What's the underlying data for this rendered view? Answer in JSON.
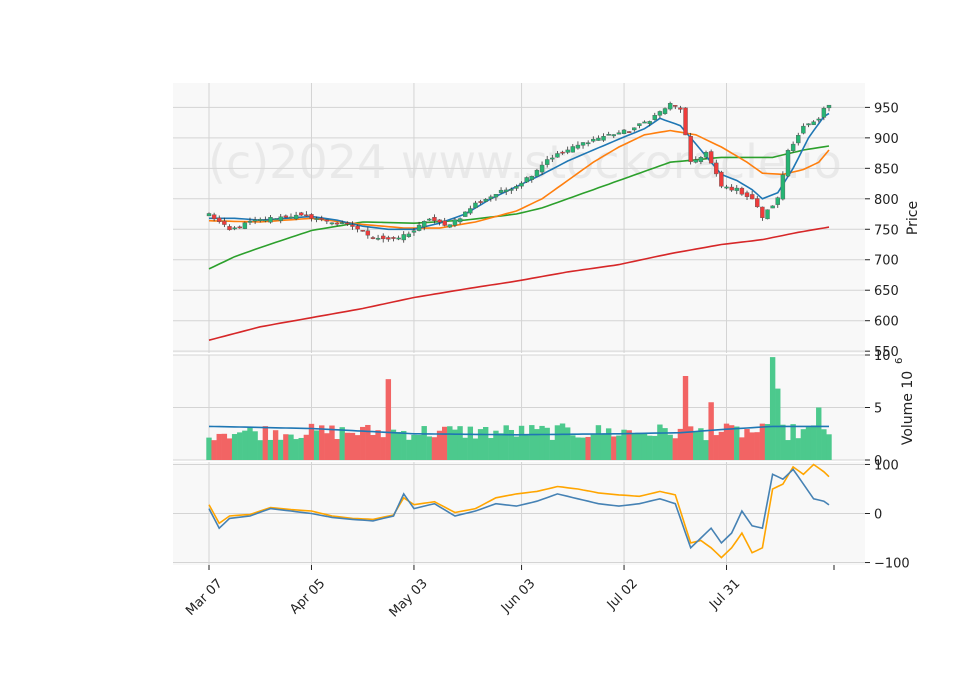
{
  "chart_data": {
    "type": "candlestick",
    "watermark": "(c)2024 www.stockoracle.io",
    "x_tick_labels": [
      "Mar 07",
      "Apr 05",
      "May 03",
      "Jun 03",
      "Jul 02",
      "Jul 31"
    ],
    "x_tick_index": [
      0,
      20,
      40,
      61,
      81,
      101
    ],
    "n_bars": 122,
    "colors": {
      "up": "#26b573",
      "down": "#ef3b3b",
      "up_vol": "#4cc98d",
      "down_vol": "#f26464",
      "ma_short": "#1f77b4",
      "ma_mid": "#ff7f0e",
      "ma_long": "#2ca02c",
      "ma_year": "#d62728",
      "osc_1": "#4682b4",
      "osc_2": "#ffa500"
    },
    "price_panel": {
      "ylabel": "Price",
      "ylim": [
        547,
        990
      ],
      "yticks": [
        550,
        600,
        650,
        700,
        750,
        800,
        850,
        900,
        950
      ],
      "close_anchors": [
        [
          0,
          775
        ],
        [
          4,
          748
        ],
        [
          8,
          762
        ],
        [
          12,
          768
        ],
        [
          16,
          772
        ],
        [
          20,
          770
        ],
        [
          24,
          762
        ],
        [
          28,
          755
        ],
        [
          32,
          738
        ],
        [
          36,
          732
        ],
        [
          40,
          748
        ],
        [
          43,
          768
        ],
        [
          46,
          755
        ],
        [
          49,
          770
        ],
        [
          52,
          792
        ],
        [
          56,
          808
        ],
        [
          60,
          822
        ],
        [
          63,
          840
        ],
        [
          66,
          865
        ],
        [
          70,
          880
        ],
        [
          74,
          895
        ],
        [
          78,
          905
        ],
        [
          82,
          912
        ],
        [
          86,
          930
        ],
        [
          90,
          955
        ],
        [
          92,
          948
        ],
        [
          94,
          858
        ],
        [
          97,
          876
        ],
        [
          100,
          820
        ],
        [
          103,
          815
        ],
        [
          106,
          800
        ],
        [
          108,
          770
        ],
        [
          111,
          800
        ],
        [
          113,
          880
        ],
        [
          116,
          918
        ],
        [
          119,
          928
        ],
        [
          120,
          948
        ],
        [
          122,
          955
        ]
      ],
      "ma_short": [
        [
          0,
          768
        ],
        [
          5,
          768
        ],
        [
          10,
          765
        ],
        [
          15,
          768
        ],
        [
          20,
          771
        ],
        [
          25,
          765
        ],
        [
          30,
          755
        ],
        [
          35,
          750
        ],
        [
          40,
          750
        ],
        [
          45,
          760
        ],
        [
          50,
          775
        ],
        [
          55,
          800
        ],
        [
          60,
          820
        ],
        [
          65,
          840
        ],
        [
          70,
          862
        ],
        [
          75,
          880
        ],
        [
          80,
          898
        ],
        [
          85,
          915
        ],
        [
          88,
          932
        ],
        [
          92,
          920
        ],
        [
          96,
          880
        ],
        [
          100,
          840
        ],
        [
          103,
          830
        ],
        [
          106,
          815
        ],
        [
          108,
          800
        ],
        [
          111,
          810
        ],
        [
          114,
          850
        ],
        [
          117,
          900
        ],
        [
          120,
          935
        ],
        [
          122,
          945
        ]
      ],
      "ma_mid": [
        [
          0,
          764
        ],
        [
          10,
          762
        ],
        [
          20,
          768
        ],
        [
          30,
          758
        ],
        [
          38,
          752
        ],
        [
          45,
          752
        ],
        [
          52,
          762
        ],
        [
          60,
          780
        ],
        [
          65,
          800
        ],
        [
          70,
          830
        ],
        [
          75,
          860
        ],
        [
          80,
          885
        ],
        [
          85,
          905
        ],
        [
          90,
          912
        ],
        [
          95,
          905
        ],
        [
          100,
          885
        ],
        [
          105,
          860
        ],
        [
          108,
          842
        ],
        [
          112,
          840
        ],
        [
          116,
          848
        ],
        [
          119,
          860
        ],
        [
          122,
          890
        ]
      ],
      "ma_long": [
        [
          0,
          685
        ],
        [
          5,
          705
        ],
        [
          10,
          720
        ],
        [
          20,
          748
        ],
        [
          30,
          762
        ],
        [
          40,
          760
        ],
        [
          50,
          765
        ],
        [
          60,
          775
        ],
        [
          65,
          785
        ],
        [
          70,
          800
        ],
        [
          80,
          830
        ],
        [
          90,
          860
        ],
        [
          100,
          868
        ],
        [
          110,
          868
        ],
        [
          116,
          880
        ],
        [
          122,
          888
        ]
      ],
      "ma_year": [
        [
          0,
          568
        ],
        [
          10,
          590
        ],
        [
          20,
          605
        ],
        [
          30,
          620
        ],
        [
          40,
          638
        ],
        [
          50,
          652
        ],
        [
          60,
          665
        ],
        [
          70,
          680
        ],
        [
          80,
          692
        ],
        [
          90,
          710
        ],
        [
          100,
          725
        ],
        [
          108,
          733
        ],
        [
          115,
          745
        ],
        [
          122,
          755
        ]
      ]
    },
    "volume_panel": {
      "ylabel": "Volume  10",
      "ylabel_exponent": "6",
      "ylim": [
        0,
        10
      ],
      "yticks": [
        0,
        5,
        10
      ],
      "tall_bars": [
        [
          35,
          7.7
        ],
        [
          93,
          8.0
        ],
        [
          98,
          5.5
        ],
        [
          110,
          9.8
        ],
        [
          111,
          6.8
        ],
        [
          119,
          5.0
        ]
      ],
      "base_mean": 2.6,
      "ma": [
        [
          0,
          3.2
        ],
        [
          20,
          3.0
        ],
        [
          40,
          2.5
        ],
        [
          60,
          2.4
        ],
        [
          80,
          2.5
        ],
        [
          92,
          2.6
        ],
        [
          100,
          2.9
        ],
        [
          110,
          3.2
        ],
        [
          122,
          3.2
        ]
      ]
    },
    "oscillator_panel": {
      "ylim": [
        -105,
        105
      ],
      "yticks": [
        -100,
        0,
        100
      ],
      "line1": [
        [
          0,
          10
        ],
        [
          2,
          -30
        ],
        [
          4,
          -10
        ],
        [
          8,
          -5
        ],
        [
          12,
          10
        ],
        [
          16,
          5
        ],
        [
          20,
          0
        ],
        [
          24,
          -8
        ],
        [
          28,
          -12
        ],
        [
          32,
          -15
        ],
        [
          36,
          -5
        ],
        [
          38,
          40
        ],
        [
          40,
          10
        ],
        [
          44,
          20
        ],
        [
          48,
          -5
        ],
        [
          52,
          5
        ],
        [
          56,
          20
        ],
        [
          60,
          15
        ],
        [
          64,
          25
        ],
        [
          68,
          40
        ],
        [
          72,
          30
        ],
        [
          76,
          20
        ],
        [
          80,
          15
        ],
        [
          84,
          20
        ],
        [
          88,
          30
        ],
        [
          91,
          20
        ],
        [
          94,
          -70
        ],
        [
          96,
          -50
        ],
        [
          98,
          -30
        ],
        [
          100,
          -60
        ],
        [
          102,
          -40
        ],
        [
          104,
          5
        ],
        [
          106,
          -25
        ],
        [
          108,
          -30
        ],
        [
          110,
          80
        ],
        [
          112,
          70
        ],
        [
          114,
          90
        ],
        [
          116,
          60
        ],
        [
          118,
          30
        ],
        [
          120,
          25
        ],
        [
          122,
          10
        ]
      ],
      "line2": [
        [
          0,
          18
        ],
        [
          2,
          -20
        ],
        [
          4,
          -5
        ],
        [
          8,
          -2
        ],
        [
          12,
          12
        ],
        [
          16,
          8
        ],
        [
          20,
          5
        ],
        [
          24,
          -5
        ],
        [
          28,
          -10
        ],
        [
          32,
          -12
        ],
        [
          36,
          -3
        ],
        [
          38,
          32
        ],
        [
          40,
          18
        ],
        [
          44,
          24
        ],
        [
          48,
          2
        ],
        [
          52,
          10
        ],
        [
          56,
          32
        ],
        [
          60,
          40
        ],
        [
          64,
          45
        ],
        [
          68,
          55
        ],
        [
          72,
          50
        ],
        [
          76,
          42
        ],
        [
          80,
          38
        ],
        [
          84,
          35
        ],
        [
          88,
          45
        ],
        [
          91,
          38
        ],
        [
          94,
          -60
        ],
        [
          96,
          -55
        ],
        [
          98,
          -70
        ],
        [
          100,
          -90
        ],
        [
          102,
          -70
        ],
        [
          104,
          -40
        ],
        [
          106,
          -80
        ],
        [
          108,
          -70
        ],
        [
          110,
          50
        ],
        [
          112,
          60
        ],
        [
          114,
          95
        ],
        [
          116,
          80
        ],
        [
          118,
          100
        ],
        [
          120,
          85
        ],
        [
          122,
          65
        ]
      ]
    }
  }
}
